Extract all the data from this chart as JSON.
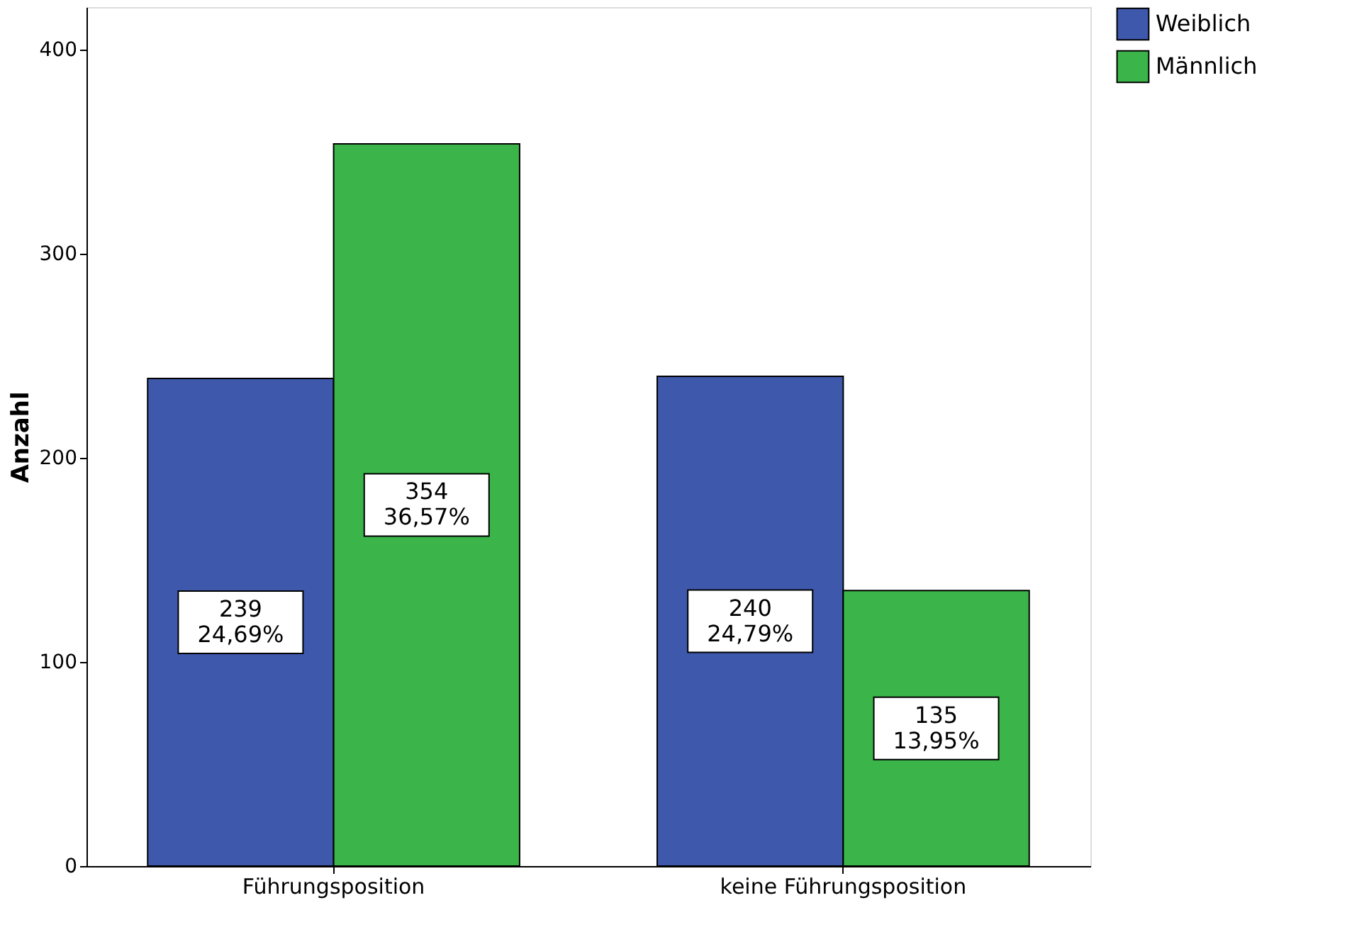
{
  "chart_data": {
    "type": "bar",
    "ylabel": "Anzahl",
    "categories": [
      "Führungsposition",
      "keine Führungsposition"
    ],
    "series": [
      {
        "name": "Weiblich",
        "color": "#3e58ac",
        "values": [
          239,
          240
        ],
        "value_labels": [
          "239\n24,69%",
          "240\n24,79%"
        ]
      },
      {
        "name": "Männlich",
        "color": "#3bb54a",
        "values": [
          354,
          135
        ],
        "value_labels": [
          "354\n36,57%",
          "135\n13,95%"
        ]
      }
    ],
    "ylim": [
      0,
      421
    ],
    "yticks": [
      0,
      100,
      200,
      300,
      400
    ],
    "grid": false,
    "legend": "top right"
  }
}
